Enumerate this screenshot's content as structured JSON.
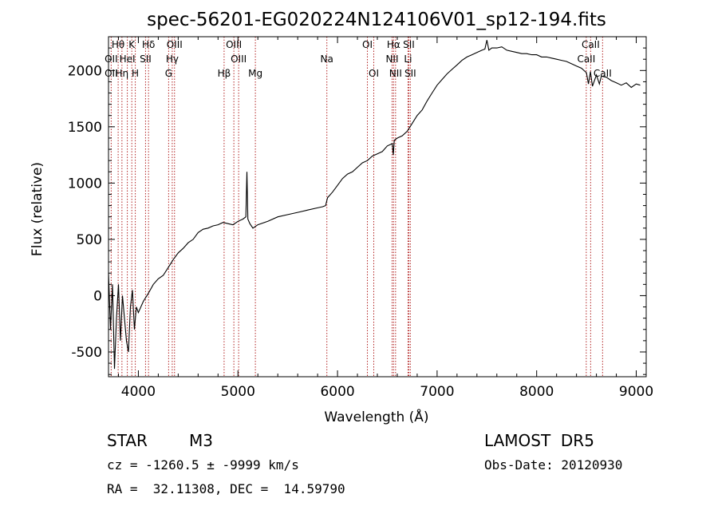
{
  "chart_data": {
    "type": "line",
    "title": "spec-56201-EG020224N124106V01_sp12-194.fits",
    "xlabel": "Wavelength (Å)",
    "ylabel": "Flux (relative)",
    "xlim": [
      3700,
      9100
    ],
    "ylim": [
      -720,
      2300
    ],
    "xticks": [
      4000,
      5000,
      6000,
      7000,
      8000,
      9000
    ],
    "yticks": [
      -500,
      0,
      500,
      1000,
      1500,
      2000
    ],
    "grid": false,
    "series": [
      {
        "x": [
          3700,
          3720,
          3740,
          3760,
          3780,
          3800,
          3820,
          3840,
          3860,
          3880,
          3900,
          3920,
          3940,
          3960,
          3980,
          4000,
          4050,
          4100,
          4150,
          4200,
          4250,
          4300,
          4350,
          4400,
          4450,
          4500,
          4550,
          4600,
          4650,
          4700,
          4750,
          4800,
          4850,
          4900,
          4950,
          5000,
          5050,
          5080,
          5090,
          5100,
          5120,
          5150,
          5200,
          5300,
          5400,
          5500,
          5600,
          5700,
          5800,
          5850,
          5880,
          5900,
          5950,
          6000,
          6050,
          6100,
          6150,
          6200,
          6250,
          6300,
          6350,
          6400,
          6450,
          6500,
          6550,
          6560,
          6570,
          6600,
          6650,
          6700,
          6750,
          6800,
          6850,
          6900,
          6950,
          7000,
          7050,
          7100,
          7150,
          7200,
          7250,
          7300,
          7350,
          7400,
          7450,
          7480,
          7500,
          7520,
          7550,
          7600,
          7650,
          7700,
          7750,
          7800,
          7850,
          7900,
          7950,
          8000,
          8050,
          8100,
          8150,
          8200,
          8250,
          8300,
          8350,
          8400,
          8450,
          8500,
          8520,
          8540,
          8560,
          8600,
          8630,
          8650,
          8700,
          8750,
          8800,
          8850,
          8900,
          8950,
          9000,
          9040
        ],
        "y": [
          200,
          -300,
          100,
          -650,
          -200,
          100,
          -400,
          0,
          -200,
          -400,
          -500,
          -100,
          50,
          -300,
          -100,
          -150,
          -50,
          20,
          100,
          150,
          180,
          250,
          320,
          380,
          420,
          470,
          500,
          560,
          590,
          600,
          620,
          630,
          650,
          640,
          630,
          660,
          680,
          700,
          1100,
          680,
          640,
          600,
          630,
          660,
          700,
          720,
          740,
          760,
          780,
          790,
          800,
          870,
          920,
          980,
          1040,
          1080,
          1100,
          1140,
          1180,
          1200,
          1240,
          1260,
          1280,
          1330,
          1350,
          1250,
          1380,
          1400,
          1420,
          1460,
          1530,
          1600,
          1650,
          1730,
          1800,
          1870,
          1920,
          1970,
          2010,
          2050,
          2090,
          2120,
          2140,
          2160,
          2180,
          2190,
          2270,
          2180,
          2200,
          2200,
          2210,
          2180,
          2170,
          2160,
          2150,
          2150,
          2140,
          2140,
          2120,
          2120,
          2110,
          2100,
          2090,
          2080,
          2060,
          2040,
          2020,
          1980,
          1880,
          1990,
          1860,
          1960,
          1880,
          1950,
          1940,
          1910,
          1890,
          1870,
          1890,
          1850,
          1880,
          1870
        ]
      }
    ],
    "line_markers": [
      {
        "label": "Hθ",
        "wl": 3797,
        "row": 0
      },
      {
        "label": "K",
        "wl": 3934,
        "row": 0
      },
      {
        "label": "Hδ",
        "wl": 4102,
        "row": 0
      },
      {
        "label": "OIII",
        "wl": 4363,
        "row": 0
      },
      {
        "label": "OIII",
        "wl": 4959,
        "row": 0
      },
      {
        "label": "OI",
        "wl": 6300,
        "row": 0
      },
      {
        "label": "Hα",
        "wl": 6563,
        "row": 0
      },
      {
        "label": "SII",
        "wl": 6716,
        "row": 0
      },
      {
        "label": "CaII",
        "wl": 8542,
        "row": 0
      },
      {
        "label": "OII",
        "wl": 3727,
        "row": 1
      },
      {
        "label": "HeI",
        "wl": 3889,
        "row": 1
      },
      {
        "label": "SII",
        "wl": 4072,
        "row": 1
      },
      {
        "label": "Hγ",
        "wl": 4340,
        "row": 1
      },
      {
        "label": "OIII",
        "wl": 5007,
        "row": 1
      },
      {
        "label": "Na",
        "wl": 5893,
        "row": 1
      },
      {
        "label": "NII",
        "wl": 6548,
        "row": 1
      },
      {
        "label": "Li",
        "wl": 6708,
        "row": 1
      },
      {
        "label": "CaII",
        "wl": 8498,
        "row": 1
      },
      {
        "label": "OII",
        "wl": 3727,
        "row": 2
      },
      {
        "label": "Hη",
        "wl": 3835,
        "row": 2
      },
      {
        "label": "H",
        "wl": 3969,
        "row": 2
      },
      {
        "label": "G",
        "wl": 4304,
        "row": 2
      },
      {
        "label": "Hβ",
        "wl": 4861,
        "row": 2
      },
      {
        "label": "Mg",
        "wl": 5175,
        "row": 2
      },
      {
        "label": "OI",
        "wl": 6364,
        "row": 2
      },
      {
        "label": "NII",
        "wl": 6583,
        "row": 2
      },
      {
        "label": "SII",
        "wl": 6731,
        "row": 2
      },
      {
        "label": "CaII",
        "wl": 8662,
        "row": 2
      }
    ],
    "colors": {
      "spectrum": "#000000",
      "line_marker": "#b22222",
      "axes": "#000000"
    }
  },
  "info": {
    "object_class": "STAR",
    "subclass": "M3",
    "survey": "LAMOST  DR5",
    "cz": "cz = -1260.5 ± -9999 km/s",
    "obs_date": "Obs-Date: 20120930",
    "coords": "RA =  32.11308, DEC =  14.59790"
  }
}
